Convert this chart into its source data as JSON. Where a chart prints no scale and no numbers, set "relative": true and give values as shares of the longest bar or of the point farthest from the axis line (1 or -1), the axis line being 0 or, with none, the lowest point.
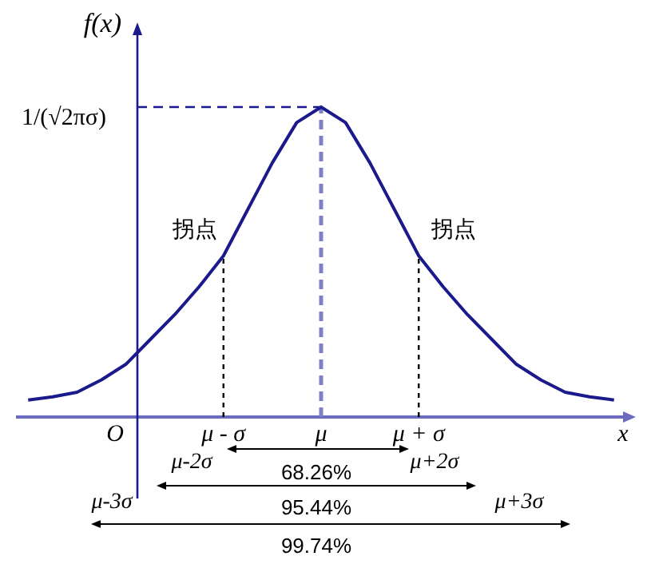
{
  "chart_data": {
    "type": "line",
    "relative": true,
    "xlabel": "x",
    "ylabel": "f(x)",
    "categories": [
      null,
      null,
      null,
      null,
      null,
      null,
      null,
      null,
      "μ - σ",
      null,
      null,
      null,
      "μ",
      null,
      null,
      null,
      "μ + σ",
      null,
      null,
      null,
      null,
      null,
      null,
      null,
      null
    ],
    "series": [
      {
        "color": "#1a1a8c",
        "values": [
          0.055,
          0.065,
          0.08,
          0.12,
          0.17,
          0.25,
          0.33,
          0.42,
          0.52,
          0.67,
          0.82,
          0.95,
          1,
          0.95,
          0.82,
          0.67,
          0.52,
          0.42,
          0.33,
          0.25,
          0.17,
          0.12,
          0.08,
          0.065,
          0.055
        ]
      }
    ],
    "ref_lines": [
      {
        "axis": "y",
        "value": 1,
        "label": "1/(√2πσ)",
        "color": "#1a1a8c",
        "line_style": "dashed"
      },
      {
        "axis": "x",
        "value": "μ",
        "color": "#7f7fc4",
        "line_style": "dashed"
      },
      {
        "axis": "x",
        "value": "μ - σ",
        "color": "#000000",
        "line_style": "dotted"
      },
      {
        "axis": "x",
        "value": "μ + σ",
        "color": "#000000",
        "line_style": "dotted"
      }
    ],
    "annotations": [
      "O",
      {
        "text": "拐点",
        "x": "μ - σ",
        "y": 0.52
      },
      {
        "text": "拐点",
        "x": "μ + σ",
        "y": 0.52
      },
      "68.26%",
      "μ-2σ",
      "μ+2σ",
      "95.44%",
      "μ-3σ",
      "μ+3σ",
      "99.74%"
    ],
    "line_style": "solid"
  }
}
